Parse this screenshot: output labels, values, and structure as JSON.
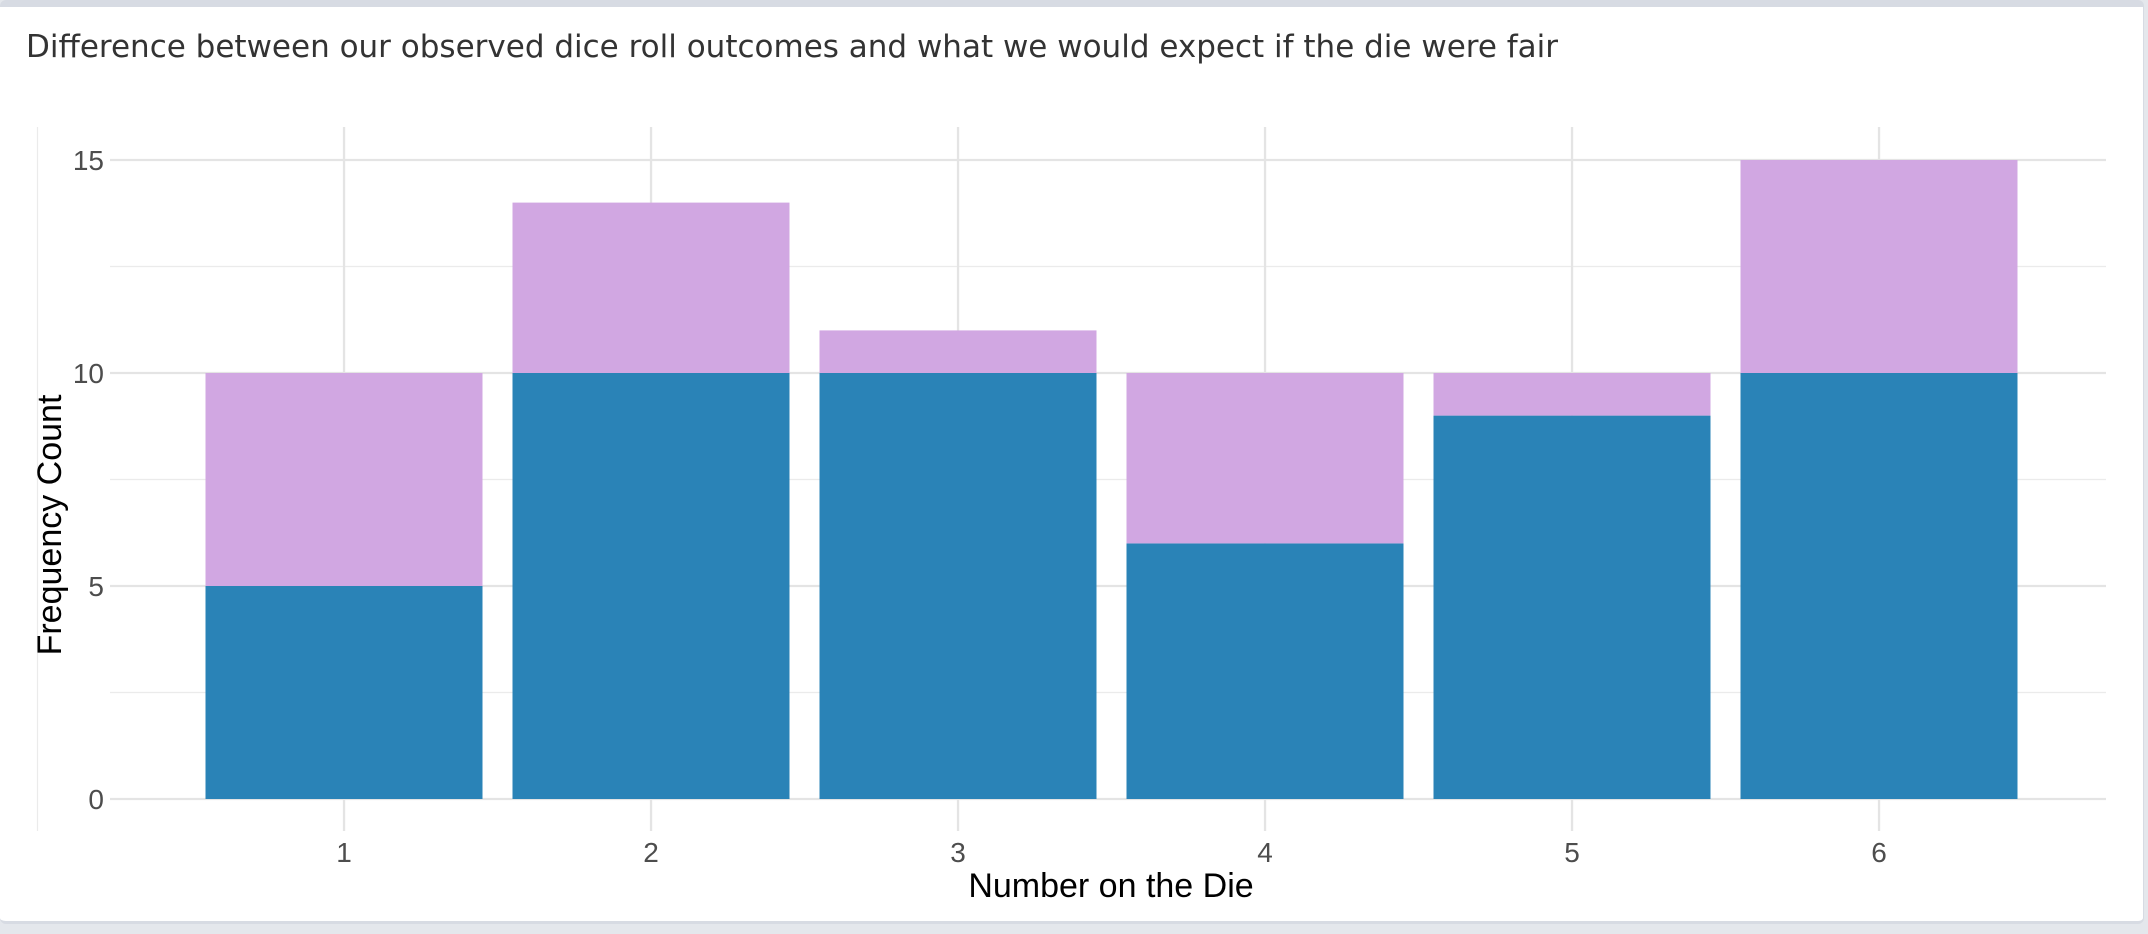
{
  "panel": {
    "title": "Difference between our observed dice roll outcomes and what we would expect if the die were fair"
  },
  "chart_data": {
    "type": "bar",
    "title": "",
    "xlabel": "Number on the Die",
    "ylabel": "Frequency Count",
    "categories": [
      "1",
      "2",
      "3",
      "4",
      "5",
      "6"
    ],
    "ylim": [
      0,
      15
    ],
    "y_ticks": [
      0,
      5,
      10,
      15
    ],
    "grid": true,
    "legend": "none",
    "series": [
      {
        "values": [
          5,
          10,
          10,
          6,
          9,
          10
        ],
        "color": "#2a83b7"
      },
      {
        "values": [
          10,
          14,
          11,
          10,
          10,
          15
        ]
      }
    ],
    "colors": {
      "shortfall": "#d1a7e2",
      "excess": "#85c5f9",
      "overlap": "#2a83b7",
      "grid": "#ebebeb"
    }
  }
}
